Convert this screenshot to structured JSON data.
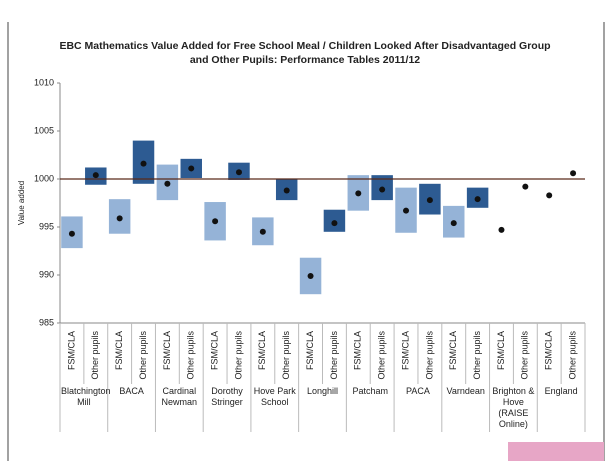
{
  "chart_data": {
    "type": "range-dot",
    "title": [
      "EBC Mathematics Value Added for Free School Meal / Children Looked After Disadvantaged Group",
      "and Other Pupils:  Performance Tables 2011/12"
    ],
    "y_label": "Value added",
    "categories": [
      "FSM/CLA",
      "Other pupils",
      "FSM/CLA",
      "Other pupils",
      "FSM/CLA",
      "Other pupils",
      "FSM/CLA",
      "Other pupils",
      "FSM/CLA",
      "Other pupils",
      "FSM/CLA",
      "Other pupils",
      "FSM/CLA",
      "Other pupils",
      "FSM/CLA",
      "Other pupils",
      "FSM/CLA",
      "Other pupils",
      "FSM/CLA",
      "Other pupils",
      "FSM/CLA",
      "Other pupils"
    ],
    "groups": [
      "Blatchington Mill",
      "BACA",
      "Cardinal Newman",
      "Dorothy Stringer",
      "Hove Park School",
      "Longhill",
      "Patcham",
      "PACA",
      "Varndean",
      "Brighton & Hove (RAISE Online)",
      "England"
    ],
    "ranges": [
      [
        992.8,
        996.1
      ],
      [
        999.4,
        1001.2
      ],
      [
        994.3,
        997.9
      ],
      [
        999.5,
        1004.0
      ],
      [
        997.8,
        1001.5
      ],
      [
        1000.1,
        1002.1
      ],
      [
        993.6,
        997.6
      ],
      [
        999.9,
        1001.7
      ],
      [
        993.1,
        996.0
      ],
      [
        997.8,
        1000.0
      ],
      [
        988.0,
        991.8
      ],
      [
        994.5,
        996.8
      ],
      [
        996.7,
        1000.4
      ],
      [
        997.8,
        1000.4
      ],
      [
        994.4,
        999.1
      ],
      [
        996.3,
        999.5
      ],
      [
        993.9,
        997.2
      ],
      [
        997.0,
        999.1
      ],
      null,
      null,
      null,
      null
    ],
    "values": [
      994.3,
      1000.4,
      995.9,
      1001.6,
      999.5,
      1001.1,
      995.6,
      1000.7,
      994.5,
      998.8,
      989.9,
      995.4,
      998.5,
      998.9,
      996.7,
      997.8,
      995.4,
      997.9,
      994.7,
      999.2,
      998.3,
      1000.6
    ],
    "range_colors": [
      "#95b3d7",
      "#2d5b92"
    ],
    "dot_color": "#111111",
    "reference_line": 1000,
    "reference_color": "#5a2a1a",
    "ylim": [
      985,
      1010
    ],
    "yticks": [
      985,
      990,
      995,
      1000,
      1005,
      1010
    ]
  }
}
